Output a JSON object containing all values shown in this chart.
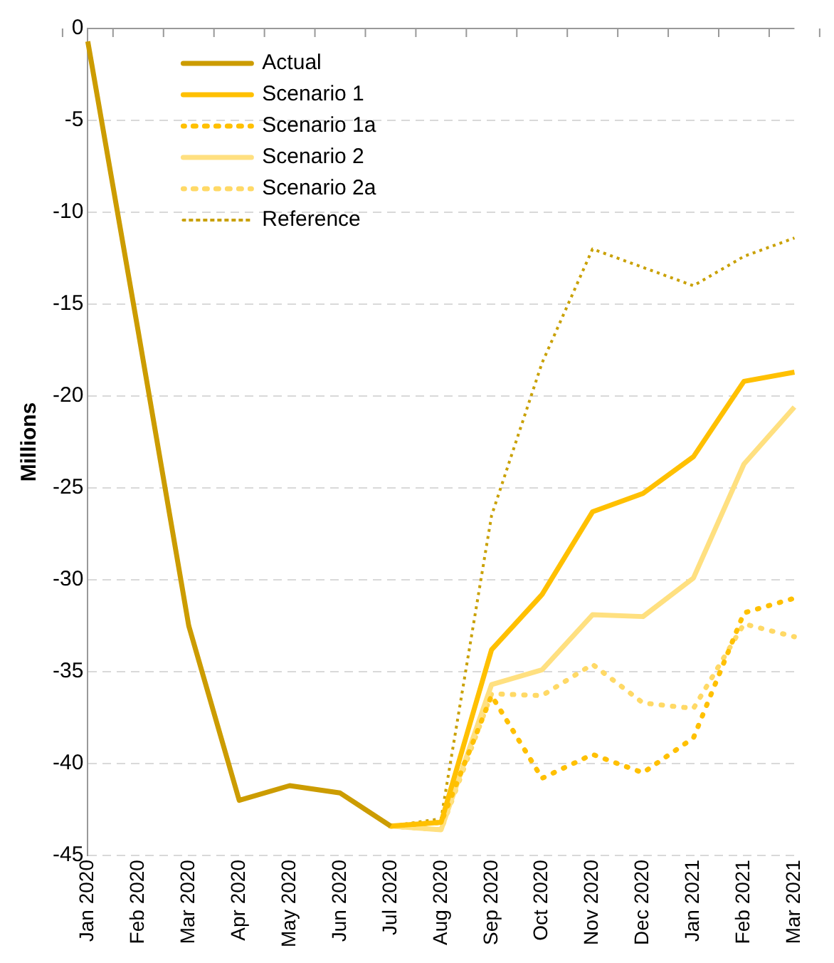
{
  "chart_data": {
    "type": "line",
    "ylabel": "Millions",
    "categories": [
      "Jan 2020",
      "Feb 2020",
      "Mar 2020",
      "Apr 2020",
      "May 2020",
      "Jun 2020",
      "Jul 2020",
      "Aug 2020",
      "Sep 2020",
      "Oct 2020",
      "Nov 2020",
      "Dec 2020",
      "Jan 2021",
      "Feb 2021",
      "Mar 2021"
    ],
    "series": [
      {
        "name": "Actual",
        "color": "#cc9c00",
        "line_style": "solid",
        "values": [
          -0.7,
          -16.5,
          -32.5,
          -42.0,
          -41.2,
          -41.6,
          -43.4,
          null,
          null,
          null,
          null,
          null,
          null,
          null,
          null
        ]
      },
      {
        "name": "Scenario 1",
        "color": "#ffc000",
        "line_style": "solid",
        "values": [
          null,
          null,
          null,
          null,
          null,
          null,
          -43.4,
          -43.2,
          -33.8,
          -30.8,
          -26.3,
          -25.3,
          -23.3,
          -19.2,
          -18.7
        ]
      },
      {
        "name": "Scenario 1a",
        "color": "#ffc000",
        "line_style": "dotted",
        "values": [
          null,
          null,
          null,
          null,
          null,
          null,
          -43.4,
          -43.2,
          -36.3,
          -40.8,
          -39.5,
          -40.5,
          -38.6,
          -31.8,
          -31.0
        ]
      },
      {
        "name": "Scenario 2",
        "color": "#ffe080",
        "line_style": "solid",
        "values": [
          null,
          null,
          null,
          null,
          null,
          null,
          -43.4,
          -43.6,
          -35.7,
          -34.9,
          -31.9,
          -32.0,
          -29.9,
          -23.7,
          -20.6
        ]
      },
      {
        "name": "Scenario 2a",
        "color": "#ffd966",
        "line_style": "dotted",
        "values": [
          null,
          null,
          null,
          null,
          null,
          null,
          -43.4,
          -43.6,
          -36.2,
          -36.3,
          -34.6,
          -36.7,
          -37.0,
          -32.4,
          -33.1
        ]
      },
      {
        "name": "Reference",
        "color": "#c9a000",
        "line_style": "dotted",
        "values": [
          null,
          null,
          null,
          null,
          null,
          null,
          -43.4,
          -43.0,
          -26.5,
          -18.2,
          -12.0,
          -13.0,
          -14.0,
          -12.4,
          -11.4
        ]
      }
    ],
    "ylim": [
      -45,
      0
    ],
    "yticks": [
      -45,
      -40,
      -35,
      -30,
      -25,
      -20,
      -15,
      -10,
      -5,
      0
    ],
    "grid": "y",
    "legend": "top left",
    "marker": "none"
  }
}
